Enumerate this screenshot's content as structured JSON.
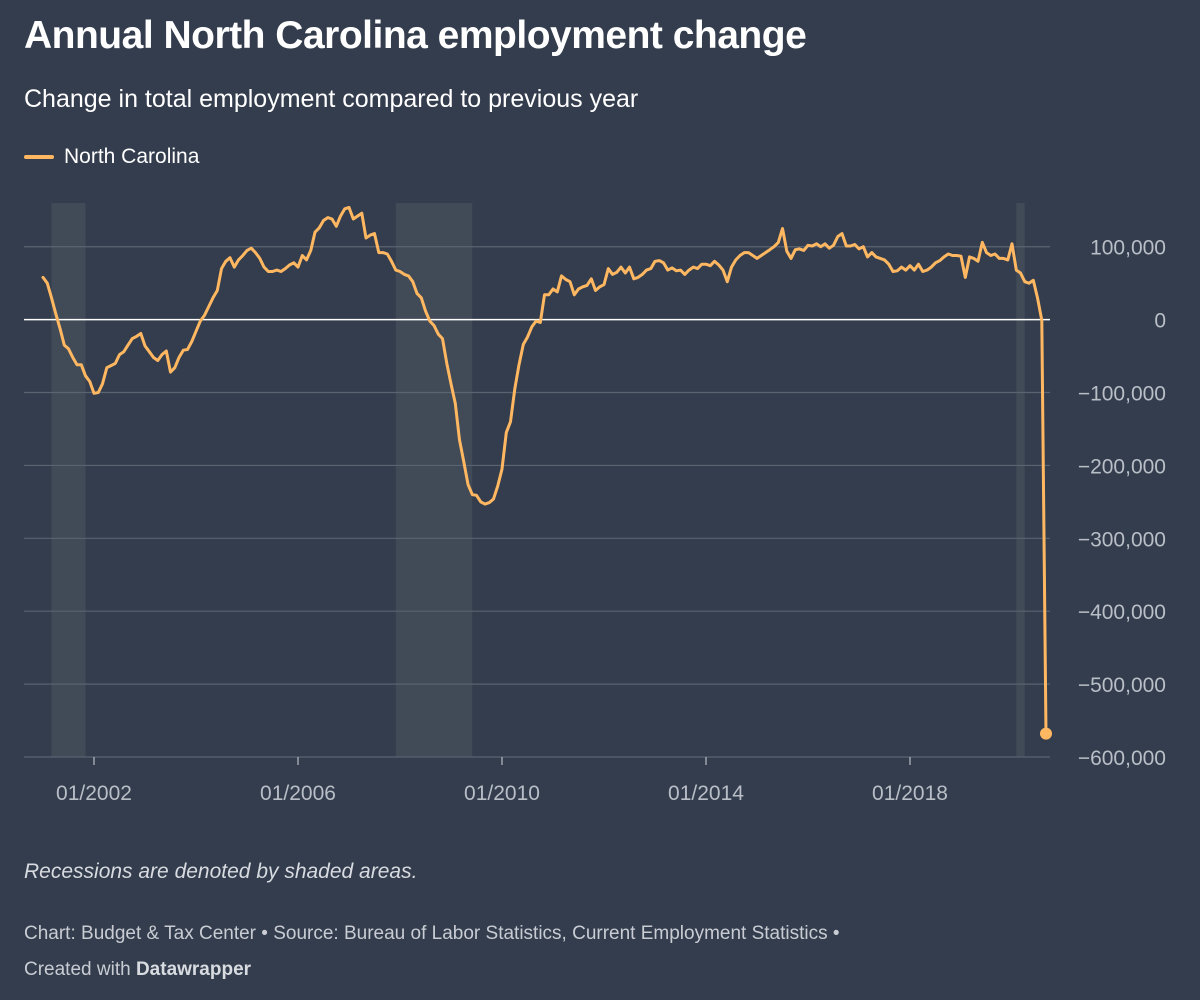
{
  "header": {
    "title": "Annual North Carolina employment change",
    "subtitle": "Change in total employment compared to previous year"
  },
  "notes": {
    "recession_note": "Recessions are denoted by shaded areas."
  },
  "footer": {
    "chart_credit": "Chart: Budget & Tax Center",
    "separator": "•",
    "source": "Source: Bureau of Labor Statistics, Current Employment Statistics",
    "created_with": "Created with",
    "tool_name": "Datawrapper"
  },
  "colors": {
    "background": "#333d4d",
    "line": "#ffb861",
    "recession_shade": "#414a57",
    "gridline": "#5a6371",
    "zero_line": "#ffffff",
    "tick_text": "#b9bec7"
  },
  "chart_data": {
    "type": "line",
    "title": "Annual North Carolina employment change",
    "subtitle": "Change in total employment compared to previous year",
    "legend": "top-left",
    "grid": "horizontal",
    "ylim": [
      -600000,
      160000
    ],
    "yticks": [
      100000,
      0,
      -100000,
      -200000,
      -300000,
      -400000,
      -500000,
      -600000
    ],
    "ytick_labels": [
      "100,000",
      "0",
      "−100,000",
      "−200,000",
      "−300,000",
      "−400,000",
      "−500,000",
      "−600,000"
    ],
    "xrange": [
      "2001-01",
      "2020-05"
    ],
    "xticks": [
      "2002-01",
      "2006-01",
      "2010-01",
      "2014-01",
      "2018-01"
    ],
    "xtick_labels": [
      "01/2002",
      "01/2006",
      "01/2010",
      "01/2014",
      "01/2018"
    ],
    "recessions": [
      {
        "start": "2001-03",
        "end": "2001-11"
      },
      {
        "start": "2007-12",
        "end": "2009-06"
      },
      {
        "start": "2020-02",
        "end": "2020-04"
      }
    ],
    "series": [
      {
        "name": "North Carolina",
        "color": "#ffb861",
        "end_marker": true,
        "points": [
          [
            "2001-01",
            58000
          ],
          [
            "2001-02",
            50000
          ],
          [
            "2001-03",
            30000
          ],
          [
            "2001-04",
            8000
          ],
          [
            "2001-05",
            -12000
          ],
          [
            "2001-06",
            -35000
          ],
          [
            "2001-07",
            -40000
          ],
          [
            "2001-08",
            -52000
          ],
          [
            "2001-09",
            -62000
          ],
          [
            "2001-10",
            -62000
          ],
          [
            "2001-11",
            -77000
          ],
          [
            "2001-12",
            -85000
          ],
          [
            "2002-01",
            -101000
          ],
          [
            "2002-02",
            -100000
          ],
          [
            "2002-03",
            -88000
          ],
          [
            "2002-04",
            -66000
          ],
          [
            "2002-05",
            -63000
          ],
          [
            "2002-06",
            -60000
          ],
          [
            "2002-07",
            -48000
          ],
          [
            "2002-08",
            -44000
          ],
          [
            "2002-09",
            -35000
          ],
          [
            "2002-10",
            -26000
          ],
          [
            "2002-11",
            -23000
          ],
          [
            "2002-12",
            -19000
          ],
          [
            "2003-01",
            -36000
          ],
          [
            "2003-02",
            -44000
          ],
          [
            "2003-03",
            -52000
          ],
          [
            "2003-04",
            -56000
          ],
          [
            "2003-05",
            -48000
          ],
          [
            "2003-06",
            -43000
          ],
          [
            "2003-07",
            -72000
          ],
          [
            "2003-08",
            -66000
          ],
          [
            "2003-09",
            -52000
          ],
          [
            "2003-10",
            -42000
          ],
          [
            "2003-11",
            -41000
          ],
          [
            "2003-12",
            -30000
          ],
          [
            "2004-01",
            -16000
          ],
          [
            "2004-02",
            -2000
          ],
          [
            "2004-03",
            6000
          ],
          [
            "2004-04",
            18000
          ],
          [
            "2004-05",
            30000
          ],
          [
            "2004-06",
            40000
          ],
          [
            "2004-07",
            70000
          ],
          [
            "2004-08",
            80000
          ],
          [
            "2004-09",
            85000
          ],
          [
            "2004-10",
            72000
          ],
          [
            "2004-11",
            82000
          ],
          [
            "2004-12",
            88000
          ],
          [
            "2005-01",
            95000
          ],
          [
            "2005-02",
            98000
          ],
          [
            "2005-03",
            92000
          ],
          [
            "2005-04",
            84000
          ],
          [
            "2005-05",
            72000
          ],
          [
            "2005-06",
            66000
          ],
          [
            "2005-07",
            66000
          ],
          [
            "2005-08",
            68000
          ],
          [
            "2005-09",
            66000
          ],
          [
            "2005-10",
            70000
          ],
          [
            "2005-11",
            75000
          ],
          [
            "2005-12",
            78000
          ],
          [
            "2006-01",
            72000
          ],
          [
            "2006-02",
            88000
          ],
          [
            "2006-03",
            82000
          ],
          [
            "2006-04",
            95000
          ],
          [
            "2006-05",
            120000
          ],
          [
            "2006-06",
            126000
          ],
          [
            "2006-07",
            136000
          ],
          [
            "2006-08",
            140000
          ],
          [
            "2006-09",
            138000
          ],
          [
            "2006-10",
            128000
          ],
          [
            "2006-11",
            142000
          ],
          [
            "2006-12",
            152000
          ],
          [
            "2007-01",
            154000
          ],
          [
            "2007-02",
            138000
          ],
          [
            "2007-03",
            142000
          ],
          [
            "2007-04",
            146000
          ],
          [
            "2007-05",
            112000
          ],
          [
            "2007-06",
            116000
          ],
          [
            "2007-07",
            118000
          ],
          [
            "2007-08",
            92000
          ],
          [
            "2007-09",
            92000
          ],
          [
            "2007-10",
            90000
          ],
          [
            "2007-11",
            80000
          ],
          [
            "2007-12",
            68000
          ],
          [
            "2008-01",
            66000
          ],
          [
            "2008-02",
            62000
          ],
          [
            "2008-03",
            60000
          ],
          [
            "2008-04",
            52000
          ],
          [
            "2008-05",
            36000
          ],
          [
            "2008-06",
            30000
          ],
          [
            "2008-07",
            12000
          ],
          [
            "2008-08",
            -2000
          ],
          [
            "2008-09",
            -8000
          ],
          [
            "2008-10",
            -20000
          ],
          [
            "2008-11",
            -26000
          ],
          [
            "2008-12",
            -60000
          ],
          [
            "2009-01",
            -88000
          ],
          [
            "2009-02",
            -115000
          ],
          [
            "2009-03",
            -165000
          ],
          [
            "2009-04",
            -195000
          ],
          [
            "2009-05",
            -226000
          ],
          [
            "2009-06",
            -240000
          ],
          [
            "2009-07",
            -241000
          ],
          [
            "2009-08",
            -250000
          ],
          [
            "2009-09",
            -253000
          ],
          [
            "2009-10",
            -251000
          ],
          [
            "2009-11",
            -246000
          ],
          [
            "2009-12",
            -228000
          ],
          [
            "2010-01",
            -205000
          ],
          [
            "2010-02",
            -155000
          ],
          [
            "2010-03",
            -140000
          ],
          [
            "2010-04",
            -95000
          ],
          [
            "2010-05",
            -62000
          ],
          [
            "2010-06",
            -34000
          ],
          [
            "2010-07",
            -24000
          ],
          [
            "2010-08",
            -10000
          ],
          [
            "2010-09",
            -2000
          ],
          [
            "2010-10",
            -4000
          ],
          [
            "2010-11",
            34000
          ],
          [
            "2010-12",
            34000
          ],
          [
            "2011-01",
            42000
          ],
          [
            "2011-02",
            38000
          ],
          [
            "2011-03",
            60000
          ],
          [
            "2011-04",
            55000
          ],
          [
            "2011-05",
            52000
          ],
          [
            "2011-06",
            34000
          ],
          [
            "2011-07",
            42000
          ],
          [
            "2011-08",
            45000
          ],
          [
            "2011-09",
            47000
          ],
          [
            "2011-10",
            56000
          ],
          [
            "2011-11",
            40000
          ],
          [
            "2011-12",
            45000
          ],
          [
            "2012-01",
            48000
          ],
          [
            "2012-02",
            70000
          ],
          [
            "2012-03",
            62000
          ],
          [
            "2012-04",
            65000
          ],
          [
            "2012-05",
            72000
          ],
          [
            "2012-06",
            64000
          ],
          [
            "2012-07",
            72000
          ],
          [
            "2012-08",
            56000
          ],
          [
            "2012-09",
            58000
          ],
          [
            "2012-10",
            62000
          ],
          [
            "2012-11",
            68000
          ],
          [
            "2012-12",
            70000
          ],
          [
            "2013-01",
            80000
          ],
          [
            "2013-02",
            81000
          ],
          [
            "2013-03",
            78000
          ],
          [
            "2013-04",
            68000
          ],
          [
            "2013-05",
            71000
          ],
          [
            "2013-06",
            67000
          ],
          [
            "2013-07",
            68000
          ],
          [
            "2013-08",
            62000
          ],
          [
            "2013-09",
            68000
          ],
          [
            "2013-10",
            72000
          ],
          [
            "2013-11",
            70000
          ],
          [
            "2013-12",
            76000
          ],
          [
            "2014-01",
            76000
          ],
          [
            "2014-02",
            74000
          ],
          [
            "2014-03",
            80000
          ],
          [
            "2014-04",
            75000
          ],
          [
            "2014-05",
            68000
          ],
          [
            "2014-06",
            52000
          ],
          [
            "2014-07",
            72000
          ],
          [
            "2014-08",
            82000
          ],
          [
            "2014-09",
            88000
          ],
          [
            "2014-10",
            92000
          ],
          [
            "2014-11",
            92000
          ],
          [
            "2014-12",
            88000
          ],
          [
            "2015-01",
            84000
          ],
          [
            "2015-02",
            88000
          ],
          [
            "2015-03",
            92000
          ],
          [
            "2015-04",
            96000
          ],
          [
            "2015-05",
            100000
          ],
          [
            "2015-06",
            106000
          ],
          [
            "2015-07",
            125000
          ],
          [
            "2015-08",
            94000
          ],
          [
            "2015-09",
            84000
          ],
          [
            "2015-10",
            96000
          ],
          [
            "2015-11",
            97000
          ],
          [
            "2015-12",
            95000
          ],
          [
            "2016-01",
            102000
          ],
          [
            "2016-02",
            101000
          ],
          [
            "2016-03",
            104000
          ],
          [
            "2016-04",
            100000
          ],
          [
            "2016-05",
            104000
          ],
          [
            "2016-06",
            98000
          ],
          [
            "2016-07",
            102000
          ],
          [
            "2016-08",
            114000
          ],
          [
            "2016-09",
            118000
          ],
          [
            "2016-10",
            101000
          ],
          [
            "2016-11",
            101000
          ],
          [
            "2016-12",
            103000
          ],
          [
            "2017-01",
            97000
          ],
          [
            "2017-02",
            100000
          ],
          [
            "2017-03",
            86000
          ],
          [
            "2017-04",
            92000
          ],
          [
            "2017-05",
            86000
          ],
          [
            "2017-06",
            84000
          ],
          [
            "2017-07",
            82000
          ],
          [
            "2017-08",
            76000
          ],
          [
            "2017-09",
            66000
          ],
          [
            "2017-10",
            67000
          ],
          [
            "2017-11",
            72000
          ],
          [
            "2017-12",
            68000
          ],
          [
            "2018-01",
            74000
          ],
          [
            "2018-02",
            68000
          ],
          [
            "2018-03",
            76000
          ],
          [
            "2018-04",
            66000
          ],
          [
            "2018-05",
            68000
          ],
          [
            "2018-06",
            72000
          ],
          [
            "2018-07",
            78000
          ],
          [
            "2018-08",
            81000
          ],
          [
            "2018-09",
            86000
          ],
          [
            "2018-10",
            90000
          ],
          [
            "2018-11",
            88000
          ],
          [
            "2018-12",
            88000
          ],
          [
            "2019-01",
            87000
          ],
          [
            "2019-02",
            58000
          ],
          [
            "2019-03",
            86000
          ],
          [
            "2019-04",
            84000
          ],
          [
            "2019-05",
            80000
          ],
          [
            "2019-06",
            106000
          ],
          [
            "2019-07",
            92000
          ],
          [
            "2019-08",
            88000
          ],
          [
            "2019-09",
            90000
          ],
          [
            "2019-10",
            84000
          ],
          [
            "2019-11",
            84000
          ],
          [
            "2019-12",
            82000
          ],
          [
            "2020-01",
            104000
          ],
          [
            "2020-02",
            68000
          ],
          [
            "2020-03",
            64000
          ],
          [
            "2020-04",
            52000
          ],
          [
            "2020-05",
            50000
          ],
          [
            "2020-06",
            54000
          ],
          [
            "2020-07",
            30000
          ],
          [
            "2020-08",
            -1000
          ],
          [
            "2020-09",
            -568000
          ]
        ]
      }
    ]
  }
}
